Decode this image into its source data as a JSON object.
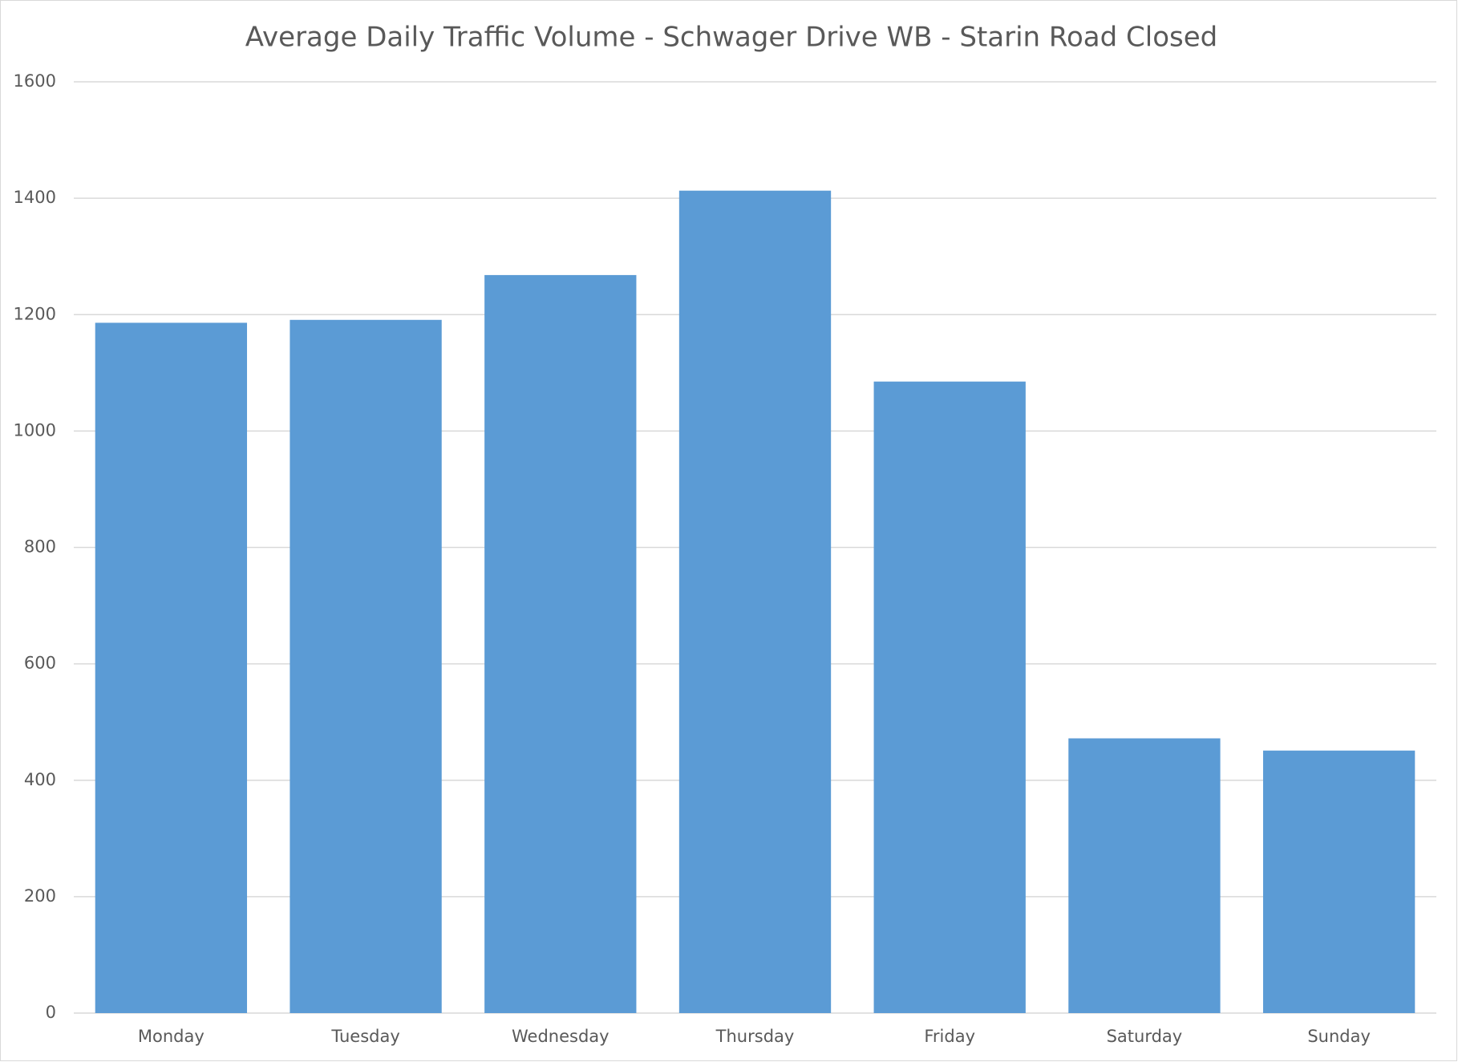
{
  "chart_data": {
    "type": "bar",
    "title": "Average Daily Traffic Volume - Schwager Drive WB - Starin Road Closed",
    "categories": [
      "Monday",
      "Tuesday",
      "Wednesday",
      "Thursday",
      "Friday",
      "Saturday",
      "Sunday"
    ],
    "values": [
      1186,
      1191,
      1268,
      1413,
      1085,
      472,
      451
    ],
    "color": "#5b9bd5",
    "ylim": [
      0,
      1600
    ],
    "yticks": [
      0,
      200,
      400,
      600,
      800,
      1000,
      1200,
      1400,
      1600
    ],
    "grid": true
  }
}
